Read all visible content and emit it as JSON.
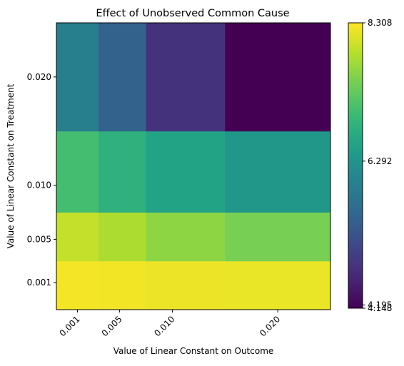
{
  "chart_data": {
    "type": "heatmap",
    "title": "Effect of Unobserved Common Cause",
    "xlabel": "Value of Linear Constant on Outcome",
    "ylabel": "Value of Linear Constant on Treatment",
    "x_values": [
      0.001,
      0.005,
      0.01,
      0.02
    ],
    "x_tick_labels": [
      "0.001",
      "0.005",
      "0.010",
      "0.020"
    ],
    "y_values": [
      0.001,
      0.005,
      0.01,
      0.02
    ],
    "y_tick_labels": [
      "0.001",
      "0.005",
      "0.010",
      "0.020"
    ],
    "x_cell_edges": [
      -0.001,
      0.003,
      0.0075,
      0.015,
      0.025
    ],
    "y_cell_edges": [
      -0.0015,
      0.003,
      0.0075,
      0.015,
      0.025
    ],
    "values": [
      [
        8.25,
        8.23,
        8.2,
        8.18
      ],
      [
        7.95,
        7.8,
        7.6,
        7.45
      ],
      [
        7.05,
        6.8,
        6.55,
        6.35
      ],
      [
        5.95,
        5.45,
        4.75,
        4.15
      ]
    ],
    "colorbar": {
      "min": 4.148,
      "max": 8.308,
      "tick_values": [
        8.308,
        6.292,
        4.195,
        4.148
      ],
      "tick_labels": [
        "8.308",
        "6.292",
        "4.195",
        "4.148"
      ]
    },
    "colormap": "viridis",
    "grid": false
  }
}
